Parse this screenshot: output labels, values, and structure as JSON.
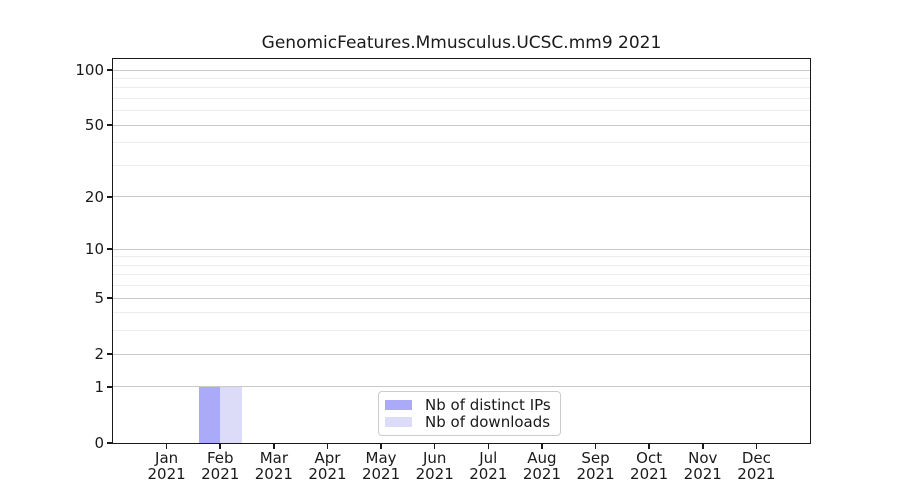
{
  "figure": {
    "background": "#ffffff"
  },
  "chart_data": {
    "type": "bar",
    "title": "GenomicFeatures.Mmusculus.UCSC.mm9 2021",
    "categories": [
      "Jan\n2021",
      "Feb\n2021",
      "Mar\n2021",
      "Apr\n2021",
      "May\n2021",
      "Jun\n2021",
      "Jul\n2021",
      "Aug\n2021",
      "Sep\n2021",
      "Oct\n2021",
      "Nov\n2021",
      "Dec\n2021"
    ],
    "series": [
      {
        "name": "Nb of distinct IPs",
        "color": "#aaaaf8",
        "values": [
          0,
          1,
          0,
          0,
          0,
          0,
          0,
          0,
          0,
          0,
          0,
          0
        ]
      },
      {
        "name": "Nb of downloads",
        "color": "#dcdcf8",
        "values": [
          0,
          1,
          0,
          0,
          0,
          0,
          0,
          0,
          0,
          0,
          0,
          0
        ]
      }
    ],
    "xlabel": "",
    "ylabel": "",
    "yscale": "log1p",
    "ylim": [
      0,
      115
    ],
    "y_major_ticks": [
      0,
      1,
      2,
      5,
      10,
      20,
      50,
      100
    ],
    "y_minor_ticks": [
      3,
      4,
      6,
      7,
      8,
      9,
      30,
      40,
      60,
      70,
      80,
      90
    ],
    "grid": "horizontal",
    "legend_position": "inside-bottom-center"
  },
  "colors": {
    "major_grid": "#c9c9c9",
    "minor_grid": "#ededed",
    "spine": "#1a1a1a",
    "tick": "#1a1a1a",
    "legend_border": "#cccccc",
    "legend_background": "#ffffff"
  }
}
